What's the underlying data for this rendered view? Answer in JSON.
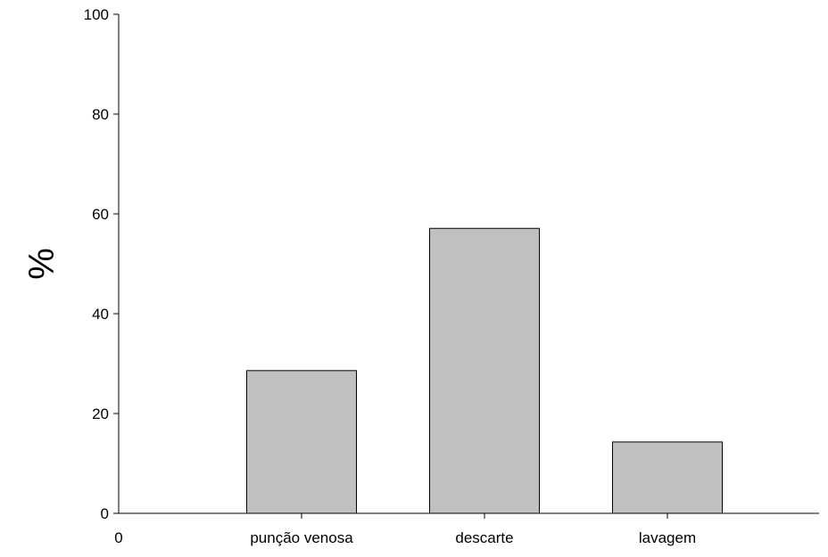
{
  "chart_data": {
    "type": "bar",
    "title": "",
    "xlabel": "",
    "ylabel": "%",
    "ylim": [
      0,
      100
    ],
    "yticks": [
      0,
      20,
      40,
      60,
      80,
      100
    ],
    "x_origin_label": "0",
    "categories": [
      "punção venosa",
      "descarte",
      "lavagem"
    ],
    "values": [
      28.6,
      57.1,
      14.3
    ],
    "grid": false,
    "legend": "none",
    "bar_color": "#c0c0c0",
    "bar_edge_color": "#000000"
  }
}
